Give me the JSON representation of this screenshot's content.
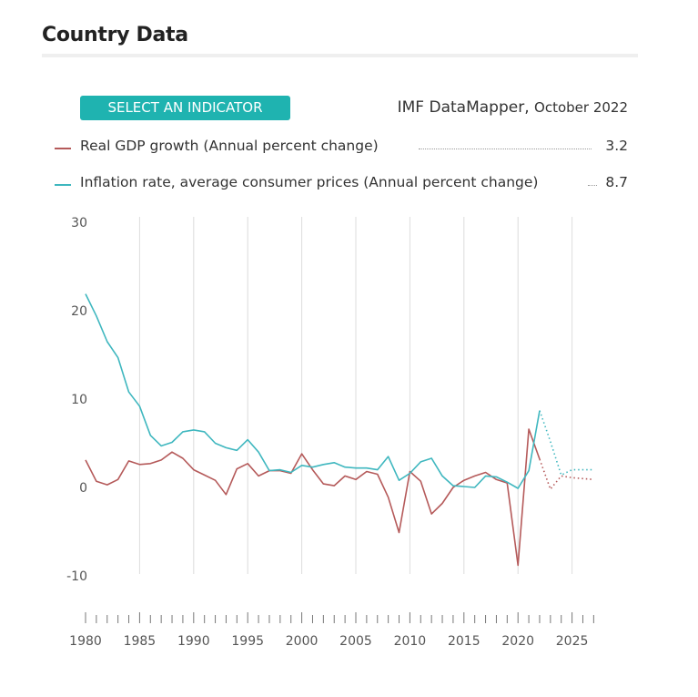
{
  "header": {
    "title": "Country Data"
  },
  "controls": {
    "select_label": "SELECT AN INDICATOR"
  },
  "source": {
    "name": "IMF DataMapper,",
    "date": "October 2022"
  },
  "chart_data": {
    "type": "line",
    "ylim": [
      -10,
      30
    ],
    "xlim": [
      1980,
      2027
    ],
    "y_ticks": [
      30,
      20,
      10,
      0,
      -10
    ],
    "x_tick_labels": [
      1980,
      1985,
      1990,
      1995,
      2000,
      2005,
      2010,
      2015,
      2020,
      2025
    ],
    "grid": "vertical",
    "forecast_start": 2022,
    "series": [
      {
        "name": "Real GDP growth (Annual percent change)",
        "value_label": "3.2",
        "color": "#b55a5a",
        "x": [
          1980,
          1981,
          1982,
          1983,
          1984,
          1985,
          1986,
          1987,
          1988,
          1989,
          1990,
          1991,
          1992,
          1993,
          1994,
          1995,
          1996,
          1997,
          1998,
          1999,
          2000,
          2001,
          2002,
          2003,
          2004,
          2005,
          2006,
          2007,
          2008,
          2009,
          2010,
          2011,
          2012,
          2013,
          2014,
          2015,
          2016,
          2017,
          2018,
          2019,
          2020,
          2021,
          2022,
          2023,
          2024,
          2025,
          2026,
          2027
        ],
        "values": [
          3.1,
          0.7,
          0.3,
          0.9,
          3.0,
          2.6,
          2.7,
          3.1,
          4.0,
          3.3,
          2.0,
          1.4,
          0.8,
          -0.8,
          2.1,
          2.7,
          1.3,
          1.9,
          1.9,
          1.6,
          3.8,
          2.0,
          0.4,
          0.2,
          1.3,
          0.9,
          1.8,
          1.5,
          -1.1,
          -5.1,
          1.8,
          0.7,
          -3.0,
          -1.8,
          0.0,
          0.8,
          1.3,
          1.7,
          0.9,
          0.5,
          -8.8,
          6.6,
          3.2,
          -0.2,
          1.3,
          1.1,
          1.0,
          0.9
        ]
      },
      {
        "name": "Inflation rate, average consumer prices (Annual percent change)",
        "value_label": "8.7",
        "color": "#3fb7bf",
        "x": [
          1980,
          1981,
          1982,
          1983,
          1984,
          1985,
          1986,
          1987,
          1988,
          1989,
          1990,
          1991,
          1992,
          1993,
          1994,
          1995,
          1996,
          1997,
          1998,
          1999,
          2000,
          2001,
          2002,
          2003,
          2004,
          2005,
          2006,
          2007,
          2008,
          2009,
          2010,
          2011,
          2012,
          2013,
          2014,
          2015,
          2016,
          2017,
          2018,
          2019,
          2020,
          2021,
          2022,
          2023,
          2024,
          2025,
          2026,
          2027
        ],
        "values": [
          21.9,
          19.4,
          16.5,
          14.7,
          10.8,
          9.2,
          5.9,
          4.7,
          5.1,
          6.3,
          6.5,
          6.3,
          5.0,
          4.5,
          4.2,
          5.4,
          4.0,
          1.9,
          2.0,
          1.7,
          2.5,
          2.3,
          2.6,
          2.8,
          2.3,
          2.2,
          2.2,
          2.0,
          3.5,
          0.8,
          1.6,
          2.9,
          3.3,
          1.3,
          0.2,
          0.1,
          0.0,
          1.3,
          1.2,
          0.6,
          -0.1,
          1.9,
          8.7,
          5.2,
          1.4,
          2.0,
          2.0,
          2.0
        ]
      }
    ]
  }
}
